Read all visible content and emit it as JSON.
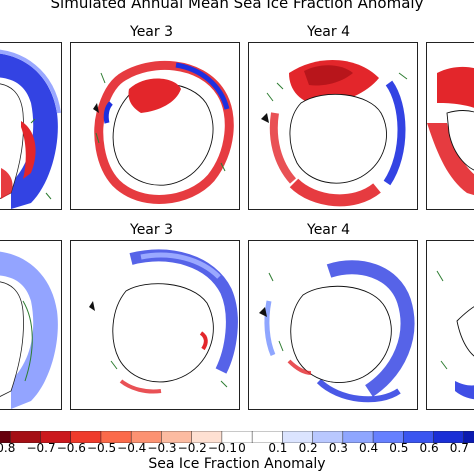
{
  "figure": {
    "title": "Simulated Annual Mean Sea Ice Fraction Anomaly",
    "panels": [
      {
        "row": 1,
        "title": ""
      },
      {
        "row": 1,
        "title": "Year 3"
      },
      {
        "row": 1,
        "title": "Year 4"
      },
      {
        "row": 1,
        "title": ""
      },
      {
        "row": 2,
        "title": ""
      },
      {
        "row": 2,
        "title": "Year 3"
      },
      {
        "row": 2,
        "title": "Year 4"
      },
      {
        "row": 2,
        "title": ""
      }
    ]
  },
  "colorbar": {
    "label": "Sea Ice Fraction Anomaly",
    "ticks": [
      "0.8",
      "−0.7",
      "−0.6",
      "−0.5",
      "−0.4",
      "−0.3",
      "−0.2",
      "−0.1",
      "0",
      "0.1",
      "0.2",
      "0.3",
      "0.4",
      "0.5",
      "0.6",
      "0.7"
    ],
    "colors": [
      "#67000d",
      "#a50f15",
      "#cb181d",
      "#ef3b2c",
      "#fb6a4a",
      "#fc9272",
      "#fcbba1",
      "#fee0d2",
      "#ffffff",
      "#ffffff",
      "#dbe4ff",
      "#b9c8ff",
      "#8fa6ff",
      "#6680ff",
      "#3a55f0",
      "#1a2fd6",
      "#0b1ab0"
    ]
  },
  "colors": {
    "negative": "#e3262b",
    "positive": "#1d2fe0",
    "contour": "#2e7d32"
  }
}
